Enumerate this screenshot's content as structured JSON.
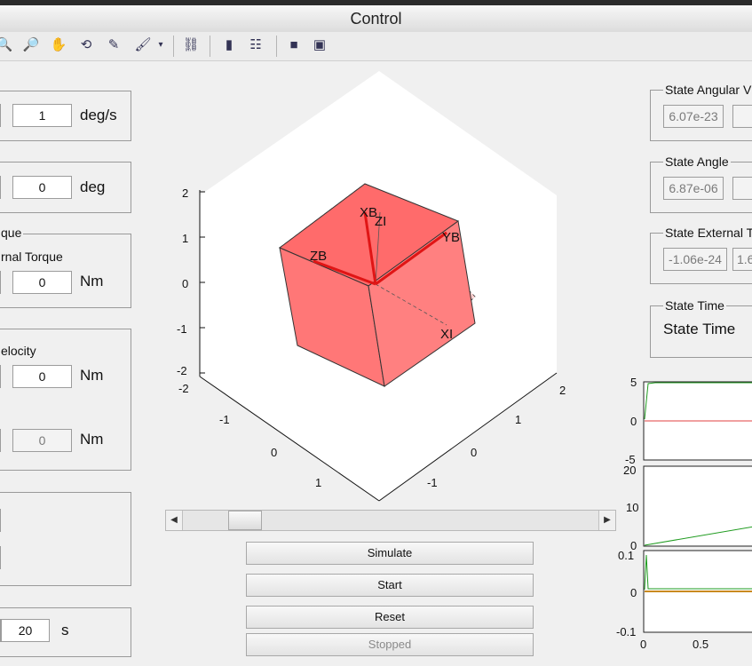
{
  "window": {
    "title": "Control"
  },
  "toolbar": {
    "icons": [
      "zoom-in-icon",
      "zoom-out-icon",
      "pan-hand-icon",
      "rotate-3d-icon",
      "data-cursor-icon",
      "brush-icon",
      "link-plot-icon",
      "colorbar-icon",
      "legend-icon",
      "hide-plot-tools-icon",
      "show-plot-tools-icon"
    ]
  },
  "left": {
    "rate_value": "1",
    "rate_unit": "deg/s",
    "angle_value": "0",
    "angle_unit": "deg",
    "torque_title": "que",
    "ext_torque_label": "rnal Torque",
    "ext_torque_value": "0",
    "ext_torque_unit": "Nm",
    "velocity_label": "elocity",
    "velocity_value": "0",
    "velocity_unit": "Nm",
    "velocity_ro_value": "0",
    "velocity_ro_unit": "Nm",
    "time_value": "20",
    "time_unit": "s"
  },
  "plot3d": {
    "ticks_vertical": [
      "2",
      "1",
      "0",
      "-1",
      "-2"
    ],
    "ticks_left": [
      "-2",
      "-1",
      "0",
      "1"
    ],
    "ticks_right": [
      "2",
      "1",
      "0",
      "-1"
    ],
    "axis_labels": {
      "xb": "XB",
      "zi": "ZI",
      "yb": "YB",
      "zb": "ZB",
      "xi": "XI"
    }
  },
  "slider": {
    "value": 0.12
  },
  "buttons": {
    "simulate": "Simulate",
    "start": "Start",
    "reset": "Reset",
    "stopped": "Stopped"
  },
  "right": {
    "ang_vel": {
      "title": "State Angular V",
      "v1": "6.07e-23"
    },
    "angle": {
      "title": "State Angle",
      "v1": "6.87e-06"
    },
    "ext_torque": {
      "title": "State External T",
      "v1": "-1.06e-24",
      "v2": "1.6"
    },
    "time": {
      "title": "State Time",
      "text": "State Time"
    }
  },
  "mini_plots": {
    "p1_ticks": [
      "5",
      "0",
      "-5"
    ],
    "p2_ticks": [
      "20",
      "10",
      "0"
    ],
    "p3_ticks": [
      "0.1",
      "0",
      "-0.1"
    ],
    "x_ticks": [
      "0",
      "0.5"
    ]
  },
  "colors": {
    "cube_fill": "#ff7777",
    "cube_edge": "#333333",
    "body_axes": "#e01515",
    "line_green": "#1f9b1f",
    "line_red": "#e04040",
    "line_orange": "#c98a20"
  }
}
